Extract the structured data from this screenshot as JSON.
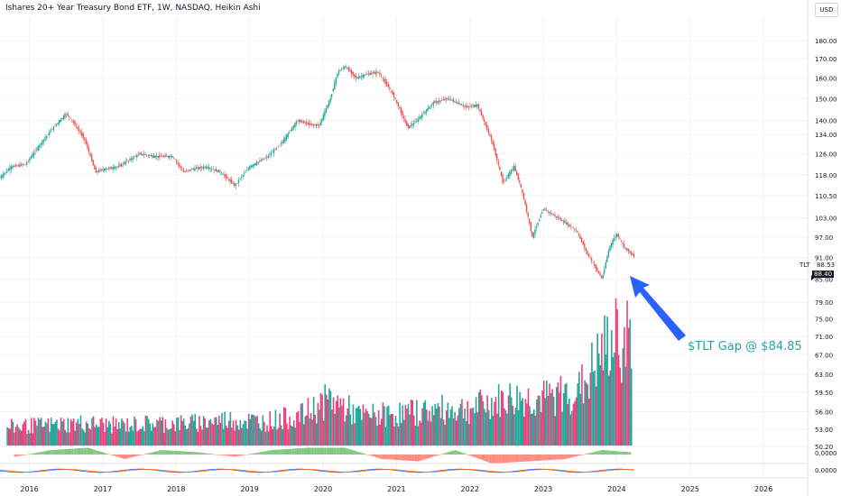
{
  "header": {
    "title": "Ishares 20+ Year Treasury Bond ETF, 1W, NASDAQ, Heikin Ashi",
    "currency": "USD"
  },
  "price_scale": {
    "ticker": "TLT",
    "last_price": "88.53",
    "prev_price": "88.40"
  },
  "annotation": {
    "text": "$TLT Gap @ $84.85",
    "color": "#26a69a",
    "arrow_color": "#2962ff"
  },
  "colors": {
    "up": "#26a69a",
    "down": "#ef5350",
    "volume_up": "#26a69a",
    "volume_down": "#ec407a",
    "osc_up": "#81c784",
    "osc_down": "#ff8a80"
  },
  "chart_data": [
    {
      "type": "line",
      "chart_style": "heikin-ashi candlestick",
      "title": "Ishares 20+ Year Treasury Bond ETF, 1W, NASDAQ, Heikin Ashi",
      "x_unit": "year",
      "x_ticks": [
        "2016",
        "2017",
        "2018",
        "2019",
        "2020",
        "2021",
        "2022",
        "2023",
        "2024",
        "2025",
        "2026"
      ],
      "y_ticks": [
        "180.00",
        "170.00",
        "160.00",
        "150.00",
        "140.00",
        "134.00",
        "126.00",
        "118.00",
        "110.50",
        "103.00",
        "97.00",
        "91.00",
        "85.00",
        "79.00",
        "75.00",
        "71.00",
        "67.00",
        "63.00",
        "59.50",
        "56.00",
        "53.00",
        "50.20"
      ],
      "y_scale": "log",
      "ylim": [
        50.2,
        183
      ],
      "xlim": [
        2015.6,
        2026.6
      ],
      "grid": true,
      "series": [
        {
          "x": [
            2015.6,
            2015.75,
            2015.95,
            2016.1,
            2016.3,
            2016.5,
            2016.58,
            2016.75,
            2016.9,
            2017.0,
            2017.2,
            2017.5,
            2017.7,
            2017.95,
            2018.1,
            2018.2,
            2018.4,
            2018.6,
            2018.8,
            2018.85,
            2019.0,
            2019.25,
            2019.45,
            2019.65,
            2019.85,
            2019.95,
            2020.1,
            2020.2,
            2020.3,
            2020.45,
            2020.6,
            2020.75,
            2020.95,
            2021.15,
            2021.25,
            2021.5,
            2021.7,
            2021.95,
            2022.1,
            2022.3,
            2022.45,
            2022.6,
            2022.7,
            2022.85,
            2023.0,
            2023.2,
            2023.45,
            2023.6,
            2023.8,
            2023.9,
            2024.0,
            2024.1,
            2024.25
          ],
          "values": [
            117,
            121,
            122,
            128,
            136,
            143,
            140,
            132,
            119,
            120,
            121,
            126,
            125,
            125,
            119,
            120,
            121,
            119,
            114,
            116,
            121,
            125,
            131,
            140,
            138,
            138,
            150,
            163,
            166,
            160,
            162,
            163,
            152,
            137,
            139,
            148,
            150,
            146,
            147,
            131,
            115,
            121,
            113,
            97,
            106,
            103,
            99,
            92,
            85,
            94,
            98,
            94,
            91
          ],
          "open": [
            116,
            119,
            122,
            127,
            135,
            142,
            141,
            133,
            122,
            119,
            120,
            125,
            125,
            125,
            121,
            119,
            120,
            120,
            116,
            114,
            120,
            124,
            129,
            138,
            139,
            138,
            148,
            158,
            168,
            162,
            161,
            164,
            156,
            140,
            138,
            146,
            151,
            147,
            148,
            136,
            120,
            119,
            116,
            102,
            103,
            105,
            101,
            94,
            88,
            90,
            97,
            96,
            93
          ],
          "high": [
            120,
            123,
            125,
            130,
            139,
            146,
            144,
            135,
            124,
            122,
            124,
            128,
            128,
            128,
            122,
            122,
            123,
            122,
            118,
            118,
            123,
            127,
            133,
            143,
            142,
            140,
            155,
            180,
            172,
            168,
            165,
            166,
            158,
            142,
            141,
            150,
            153,
            150,
            150,
            138,
            122,
            123,
            118,
            105,
            108,
            108,
            103,
            96,
            90,
            95,
            100,
            98,
            95
          ],
          "low": [
            113,
            117,
            120,
            125,
            133,
            139,
            138,
            130,
            117,
            117,
            118,
            123,
            123,
            122,
            116,
            117,
            118,
            116,
            112,
            113,
            118,
            122,
            127,
            136,
            135,
            135,
            145,
            150,
            158,
            157,
            158,
            160,
            149,
            134,
            136,
            143,
            147,
            143,
            144,
            128,
            112,
            116,
            110,
            94,
            101,
            100,
            96,
            90,
            83,
            88,
            94,
            92,
            88
          ]
        }
      ]
    },
    {
      "type": "bar",
      "title": "",
      "description": "Volume (mid-chart overlay)",
      "x": [
        2015.7,
        2016.2,
        2016.7,
        2017.2,
        2017.7,
        2018.2,
        2018.7,
        2019.2,
        2019.7,
        2020.1,
        2020.5,
        2021.0,
        2021.5,
        2022.0,
        2022.5,
        2023.0,
        2023.5,
        2023.9,
        2024.2
      ],
      "values": [
        10,
        11,
        12,
        11,
        12,
        12,
        14,
        13,
        16,
        25,
        16,
        17,
        19,
        20,
        25,
        25,
        30,
        55,
        60
      ]
    },
    {
      "type": "bar",
      "title": "",
      "description": "Oscillator histogram",
      "x": [
        2015.8,
        2016.3,
        2016.8,
        2017.3,
        2017.8,
        2018.3,
        2018.8,
        2019.3,
        2019.8,
        2020.3,
        2020.8,
        2021.3,
        2021.8,
        2022.3,
        2022.8,
        2023.3,
        2023.8,
        2024.2
      ],
      "values": [
        -1,
        2,
        3,
        -2,
        2,
        1,
        -1,
        2,
        3,
        3,
        -2,
        -3,
        2,
        -4,
        -3,
        -2,
        2,
        1
      ]
    }
  ]
}
